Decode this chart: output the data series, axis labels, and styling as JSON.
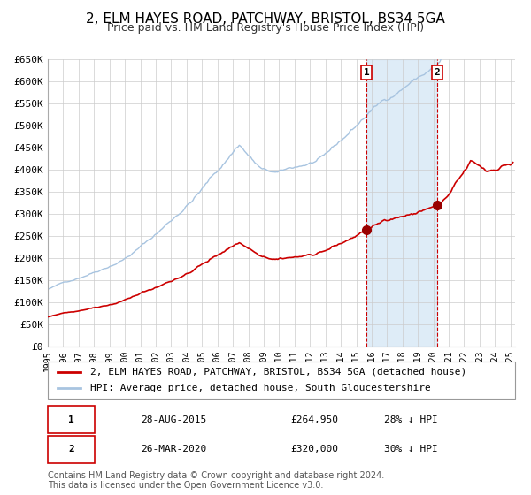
{
  "title": "2, ELM HAYES ROAD, PATCHWAY, BRISTOL, BS34 5GA",
  "subtitle": "Price paid vs. HM Land Registry's House Price Index (HPI)",
  "xlabel": "",
  "ylabel": "",
  "ylim": [
    0,
    650000
  ],
  "yticks": [
    0,
    50000,
    100000,
    150000,
    200000,
    250000,
    300000,
    350000,
    400000,
    450000,
    500000,
    550000,
    600000,
    650000
  ],
  "ytick_labels": [
    "£0",
    "£50K",
    "£100K",
    "£150K",
    "£200K",
    "£250K",
    "£300K",
    "£350K",
    "£400K",
    "£450K",
    "£500K",
    "£550K",
    "£600K",
    "£650K"
  ],
  "xlim_start": 1995.0,
  "xlim_end": 2025.3,
  "xticks": [
    1995,
    1996,
    1997,
    1998,
    1999,
    2000,
    2001,
    2002,
    2003,
    2004,
    2005,
    2006,
    2007,
    2008,
    2009,
    2010,
    2011,
    2012,
    2013,
    2014,
    2015,
    2016,
    2017,
    2018,
    2019,
    2020,
    2021,
    2022,
    2023,
    2024,
    2025
  ],
  "hpi_color": "#a8c4e0",
  "price_color": "#cc0000",
  "dot_color": "#990000",
  "vline_color": "#cc0000",
  "shade_color": "#d0e4f5",
  "background_color": "#ffffff",
  "grid_color": "#cccccc",
  "transaction1_date": 2015.66,
  "transaction2_date": 2020.24,
  "transaction1_value": 264950,
  "transaction2_value": 320000,
  "transaction1_label": "28-AUG-2015",
  "transaction2_label": "26-MAR-2020",
  "transaction1_pct": "28% ↓ HPI",
  "transaction2_pct": "30% ↓ HPI",
  "legend_label1": "2, ELM HAYES ROAD, PATCHWAY, BRISTOL, BS34 5GA (detached house)",
  "legend_label2": "HPI: Average price, detached house, South Gloucestershire",
  "footer1": "Contains HM Land Registry data © Crown copyright and database right 2024.",
  "footer2": "This data is licensed under the Open Government Licence v3.0.",
  "title_fontsize": 11,
  "subtitle_fontsize": 9,
  "axis_fontsize": 8,
  "legend_fontsize": 8,
  "footer_fontsize": 7
}
